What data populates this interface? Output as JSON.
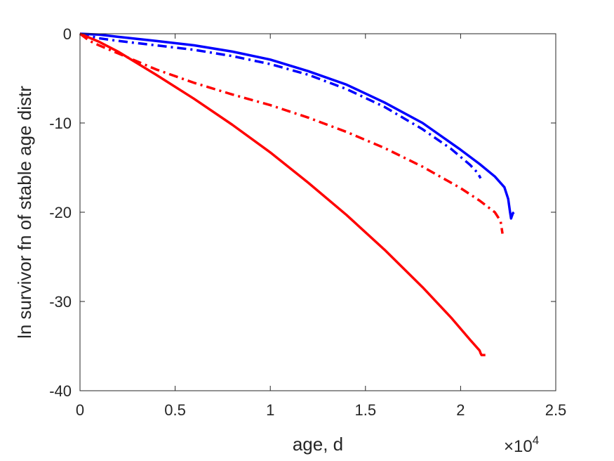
{
  "chart_data": {
    "type": "line",
    "xlabel": "age, d",
    "ylabel": "ln survivor fn of stable age distr",
    "x_multiplier_base": "×10",
    "x_multiplier_exp": "4",
    "xlim": [
      0,
      25000
    ],
    "ylim": [
      -40,
      0
    ],
    "xticks": [
      0,
      5000,
      10000,
      15000,
      20000,
      25000
    ],
    "xtick_labels": [
      "0",
      "0.5",
      "1",
      "1.5",
      "2",
      "2.5"
    ],
    "yticks": [
      0,
      -10,
      -20,
      -30,
      -40
    ],
    "ytick_labels": [
      "0",
      "-10",
      "-20",
      "-30",
      "-40"
    ],
    "grid": false,
    "box": true,
    "series": [
      {
        "color": "#0000ff",
        "style": "solid",
        "x": [
          0,
          1000,
          2000,
          4000,
          6000,
          8000,
          10000,
          12000,
          14000,
          16000,
          18000,
          20000,
          21000,
          21800,
          22300,
          22500,
          22600,
          22650,
          22700,
          22750,
          22800
        ],
        "y": [
          0,
          -0.1,
          -0.35,
          -0.8,
          -1.3,
          -2.0,
          -2.9,
          -4.2,
          -5.7,
          -7.7,
          -10.0,
          -13.0,
          -14.6,
          -16.0,
          -17.2,
          -18.5,
          -20.0,
          -20.7,
          -20.4,
          -20.1,
          -20.0
        ]
      },
      {
        "color": "#0000ff",
        "style": "dashdot",
        "x": [
          0,
          1000,
          2000,
          4000,
          6000,
          8000,
          10000,
          12000,
          14000,
          16000,
          18000,
          19500,
          20500,
          20900,
          21050
        ],
        "y": [
          0,
          -0.5,
          -0.8,
          -1.3,
          -1.8,
          -2.5,
          -3.4,
          -4.6,
          -6.2,
          -8.2,
          -10.7,
          -12.9,
          -14.7,
          -15.6,
          -16.2
        ]
      },
      {
        "color": "#ff0000",
        "style": "dashdot",
        "x": [
          0,
          500,
          1000,
          2000,
          3000,
          4000,
          6000,
          8000,
          10000,
          12000,
          14000,
          16000,
          18000,
          20000,
          21000,
          21800,
          22100,
          22200
        ],
        "y": [
          0,
          -0.8,
          -1.3,
          -2.2,
          -3.1,
          -4.0,
          -5.5,
          -6.8,
          -8.0,
          -9.4,
          -11.0,
          -12.8,
          -14.9,
          -17.3,
          -18.7,
          -20.0,
          -21.0,
          -22.4
        ]
      },
      {
        "color": "#ff0000",
        "style": "solid",
        "x": [
          0,
          1000,
          2000,
          4000,
          6000,
          8000,
          10000,
          12000,
          14000,
          16000,
          18000,
          19500,
          20500,
          21000,
          21050,
          21100,
          21300
        ],
        "y": [
          0,
          -0.9,
          -2.0,
          -4.6,
          -7.3,
          -10.2,
          -13.3,
          -16.7,
          -20.3,
          -24.2,
          -28.4,
          -31.8,
          -34.3,
          -35.5,
          -35.8,
          -36.0,
          -36.0
        ]
      }
    ]
  }
}
